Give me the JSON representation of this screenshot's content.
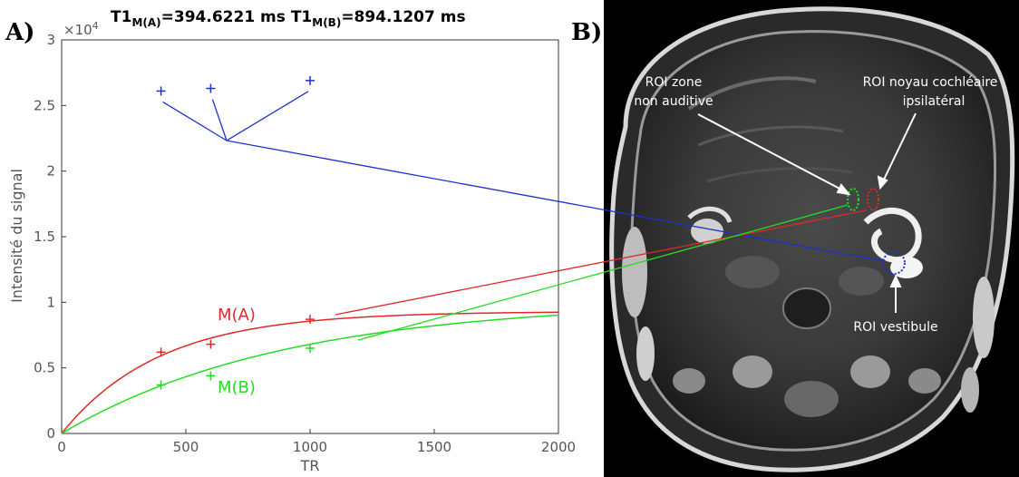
{
  "panel_a": {
    "label": "A)",
    "title_parts": {
      "t1": "T1",
      "sub_a": "M(A)",
      "value_a": "=394.6221 ms ",
      "t1b": "T1",
      "sub_b": "M(B)",
      "value_b": "=894.1207 ms"
    },
    "y_multiplier": "×10",
    "y_multiplier_exp": "4"
  },
  "panel_b": {
    "label": "B)",
    "roi_labels": {
      "zone_line1": "ROI zone",
      "zone_line2": "non auditive",
      "noyau_line1": "ROI noyau cochléaire",
      "noyau_line2": "ipsilatéral",
      "vestibule": "ROI vestibule"
    }
  },
  "colors": {
    "curve_a": "#e0282a",
    "curve_b": "#22dd22",
    "vestibule_line": "#1f2fd0"
  },
  "chart_data": {
    "type": "scatter",
    "title": "T1M(A)=394.6221 ms T1M(B)=894.1207 ms",
    "xlabel": "TR",
    "ylabel": "Intensité du signal",
    "xlim": [
      0,
      2000
    ],
    "ylim": [
      0,
      30000
    ],
    "x_ticks": [
      "0",
      "500",
      "1000",
      "1500",
      "2000"
    ],
    "y_ticks": [
      "0",
      "0.5",
      "1",
      "1.5",
      "2",
      "2.5",
      "3"
    ],
    "grid": false,
    "series": [
      {
        "name": "M(A)",
        "color": "#e0282a",
        "points": [
          [
            400,
            6200
          ],
          [
            600,
            6800
          ],
          [
            1000,
            8700
          ]
        ],
        "fit": {
          "m0": 9300,
          "t1": 394.6221
        }
      },
      {
        "name": "M(B)",
        "color": "#22dd22",
        "points": [
          [
            400,
            3700
          ],
          [
            600,
            4400
          ],
          [
            1000,
            6500
          ]
        ],
        "fit": {
          "m0": 10100,
          "t1": 894.1207
        }
      },
      {
        "name": "",
        "color": "#1f2fd0",
        "points": [
          [
            400,
            26100
          ],
          [
            600,
            26300
          ],
          [
            1000,
            26900
          ]
        ]
      }
    ]
  }
}
